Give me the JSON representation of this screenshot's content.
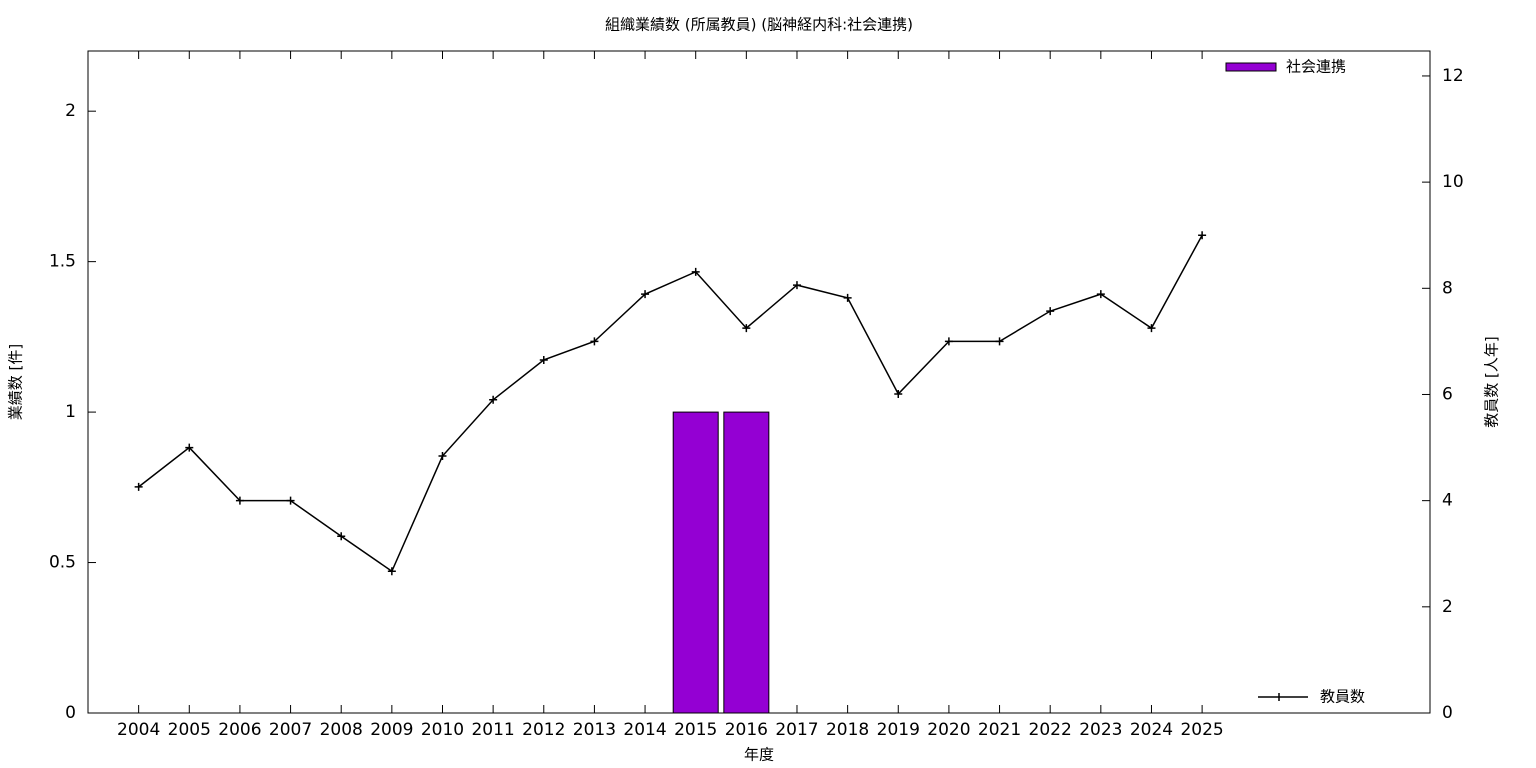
{
  "chart_data": {
    "type": "bar+line",
    "title": "組織業績数 (所属教員) (脳神経内科:社会連携)",
    "x_label": "年度",
    "y_label": "業績数 [件]",
    "y2_label": "教員数 [人年]",
    "categories": [
      "2004",
      "2005",
      "2006",
      "2007",
      "2008",
      "2009",
      "2010",
      "2011",
      "2012",
      "2013",
      "2014",
      "2015",
      "2016",
      "2017",
      "2018",
      "2019",
      "2020",
      "2021",
      "2022",
      "2023",
      "2024",
      "2025"
    ],
    "series": [
      {
        "name": "社会連携",
        "type": "bar",
        "color": "#9400d3",
        "values": [
          0,
          0,
          0,
          0,
          0,
          0,
          0,
          0,
          0,
          0,
          0,
          1,
          1,
          0,
          0,
          0,
          0,
          0,
          0,
          0,
          0,
          0
        ]
      },
      {
        "name": "教員数",
        "type": "line",
        "axis": "y2",
        "color": "#000000",
        "values": [
          4.26,
          5,
          4,
          4,
          3.33,
          2.67,
          4.84,
          5.9,
          6.65,
          7,
          7.89,
          8.31,
          7.25,
          8.06,
          7.82,
          6.01,
          7,
          7,
          7.57,
          7.89,
          7.25,
          9
        ]
      }
    ],
    "ylim": [
      0,
      2.2
    ],
    "yticks": [
      0,
      0.5,
      1,
      1.5,
      2
    ],
    "y2lim": [
      0,
      12.47
    ],
    "y2ticks": [
      0,
      2,
      4,
      6,
      8,
      10,
      12
    ]
  }
}
